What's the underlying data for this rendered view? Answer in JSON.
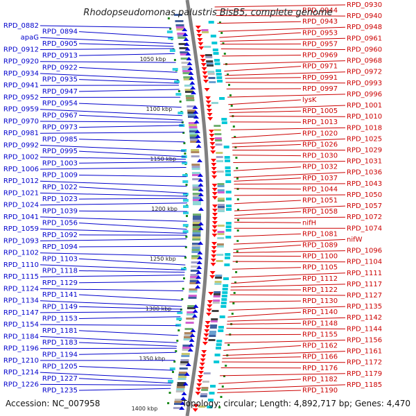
{
  "title": "Rhodopseudomonas palustris BisB5, complete genome",
  "footer": {
    "accession": "Accession: NC_007958",
    "summary": "Topology: circular; Length: 4,892,717 bp; Genes: 4,470"
  },
  "ruler_marks": [
    "1050 kbp",
    "1100 kbp",
    "1150 kbp",
    "1200 kbp",
    "1250 kbp",
    "1300 kbp",
    "1350 kbp",
    "1400 kbp"
  ],
  "colors": {
    "forward_strand": "#ff0000",
    "reverse_strand": "#0000dd",
    "left_label": "#0000cc",
    "right_label": "#cc0000",
    "backbone": "#777777",
    "tick": "#1a8a1a"
  },
  "left_labels": [
    "RPD_0882",
    "RPD_0894",
    "apaG",
    "RPD_0905",
    "RPD_0912",
    "RPD_0913",
    "RPD_0920",
    "RPD_0922",
    "RPD_0934",
    "RPD_0935",
    "RPD_0941",
    "RPD_0947",
    "RPD_0952",
    "RPD_0954",
    "RPD_0959",
    "RPD_0967",
    "RPD_0970",
    "RPD_0973",
    "RPD_0981",
    "RPD_0985",
    "RPD_0992",
    "RPD_0995",
    "RPD_1002",
    "RPD_1003",
    "RPD_1006",
    "RPD_1009",
    "RPD_1012",
    "RPD_1022",
    "RPD_1021",
    "RPD_1023",
    "RPD_1024",
    "RPD_1039",
    "RPD_1041",
    "RPD_1056",
    "RPD_1059",
    "RPD_1092",
    "RPD_1093",
    "RPD_1094",
    "RPD_1102",
    "RPD_1103",
    "RPD_1110",
    "RPD_1118",
    "RPD_1115",
    "RPD_1129",
    "RPD_1124",
    "RPD_1141",
    "RPD_1134",
    "RPD_1149",
    "RPD_1147",
    "RPD_1153",
    "RPD_1154",
    "RPD_1181",
    "RPD_1184",
    "RPD_1183",
    "RPD_1196",
    "RPD_1194",
    "RPD_1210",
    "RPD_1205",
    "RPD_1214",
    "RPD_1227",
    "RPD_1226",
    "RPD_1235"
  ],
  "right_labels": [
    "RPD_0930",
    "RPD_0944",
    "RPD_0940",
    "RPD_0943",
    "RPD_0948",
    "RPD_0953",
    "RPD_0961",
    "RPD_0957",
    "RPD_0960",
    "RPD_0969",
    "RPD_0968",
    "RPD_0971",
    "RPD_0972",
    "RPD_0991",
    "RPD_0993",
    "RPD_0997",
    "RPD_0996",
    "lysK",
    "RPD_1001",
    "RPD_1005",
    "RPD_1010",
    "RPD_1013",
    "RPD_1018",
    "RPD_1020",
    "RPD_1025",
    "RPD_1026",
    "RPD_1029",
    "RPD_1030",
    "RPD_1031",
    "RPD_1032",
    "RPD_1036",
    "RPD_1037",
    "RPD_1043",
    "RPD_1044",
    "RPD_1050",
    "RPD_1051",
    "RPD_1057",
    "RPD_1058",
    "RPD_1072",
    "nifH",
    "RPD_1074",
    "RPD_1081",
    "nifW",
    "RPD_1089",
    "RPD_1096",
    "RPD_1100",
    "RPD_1104",
    "RPD_1105",
    "RPD_1111",
    "RPD_1112",
    "RPD_1117",
    "RPD_1122",
    "RPD_1127",
    "RPD_1130",
    "RPD_1135",
    "RPD_1140",
    "RPD_1142",
    "RPD_1148",
    "RPD_1144",
    "RPD_1155",
    "RPD_1156",
    "RPD_1162",
    "RPD_1161",
    "RPD_1166",
    "RPD_1172",
    "RPD_1176",
    "RPD_1179",
    "RPD_1182",
    "RPD_1185",
    "RPD_1190"
  ]
}
